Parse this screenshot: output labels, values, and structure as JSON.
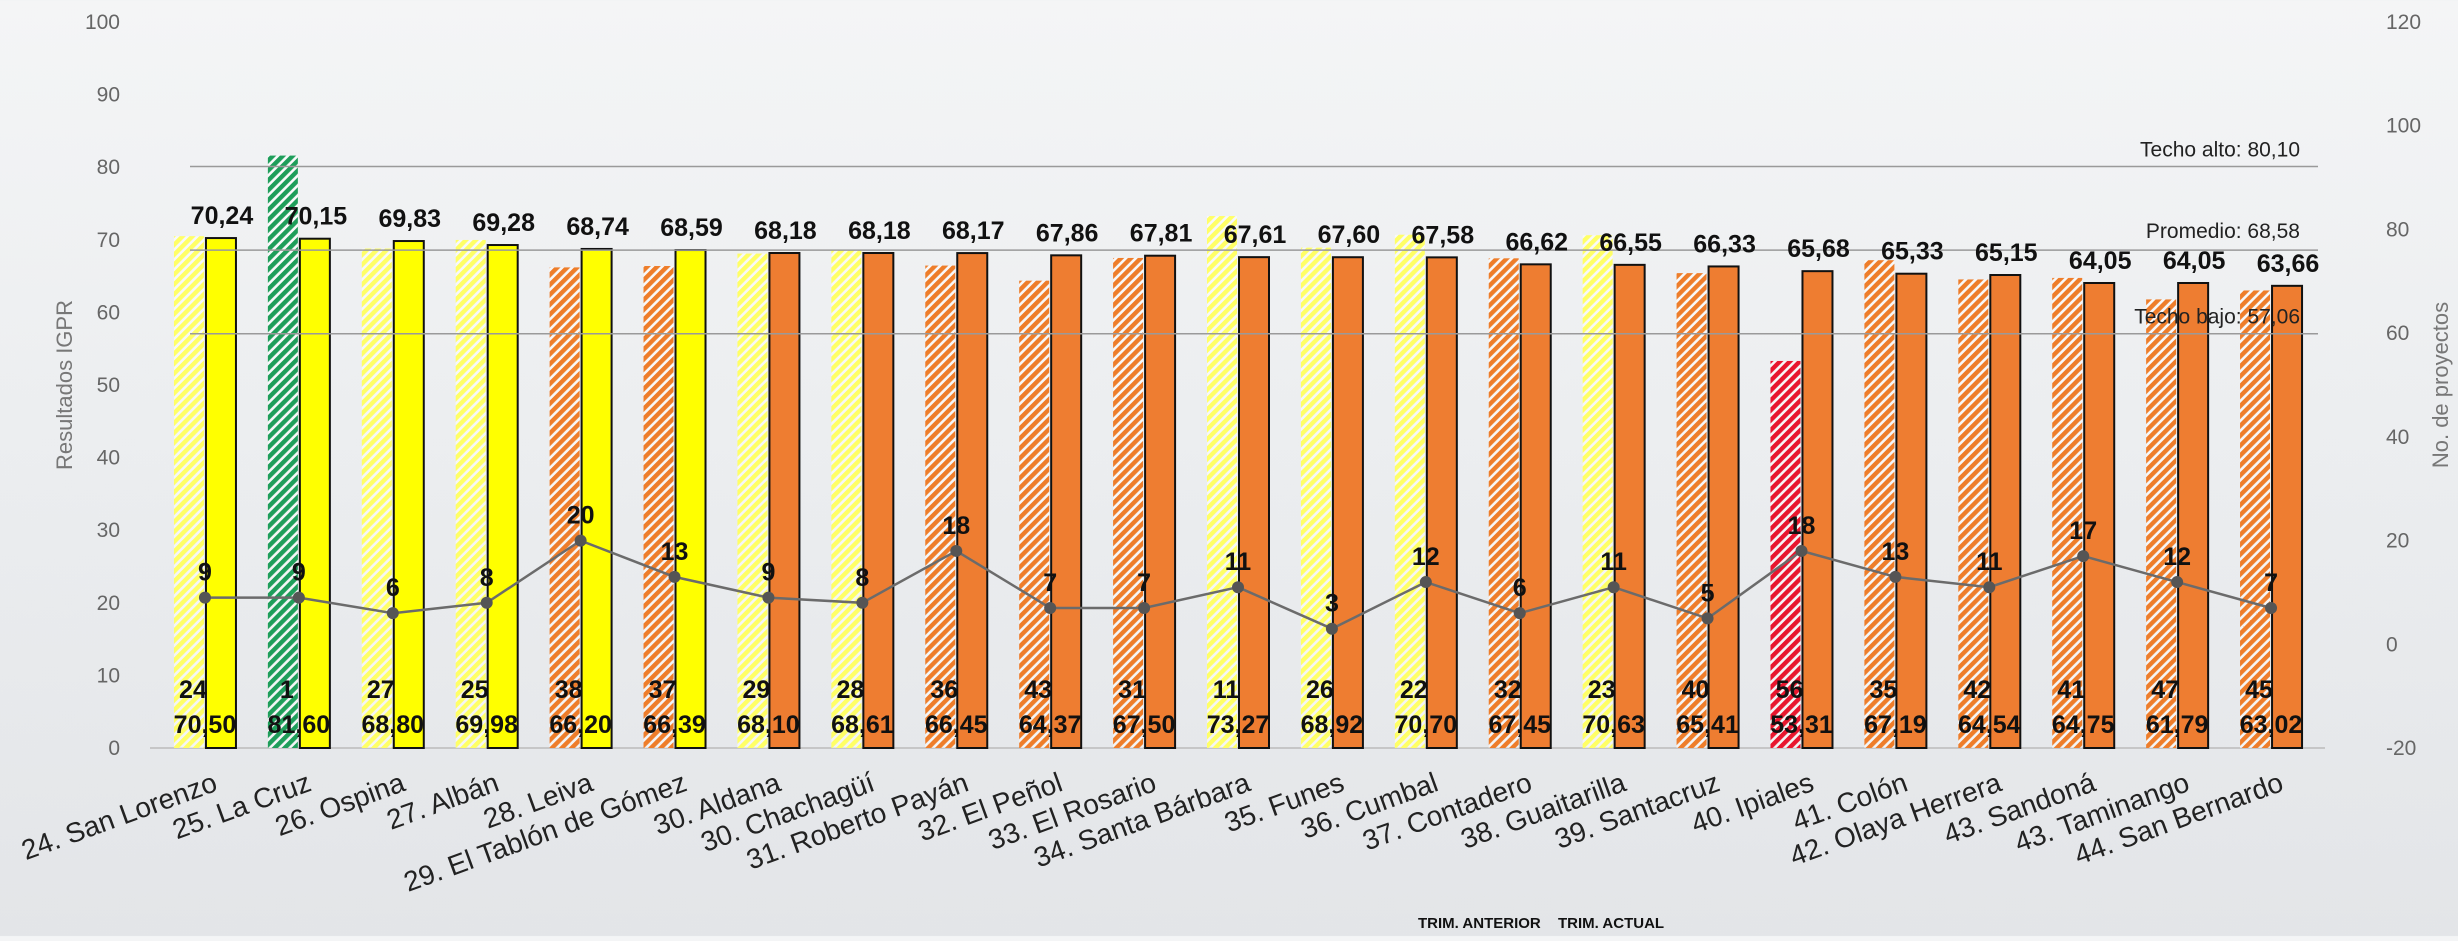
{
  "chart_data": {
    "type": "bar",
    "categories": [
      "24. San Lorenzo",
      "25. La Cruz",
      "26. Ospina",
      "27. Albán",
      "28. Leiva",
      "29. El Tablón de Gómez",
      "30. Aldana",
      "30. Chachagüí",
      "31. Roberto Payán",
      "32. El Peñol",
      "33. El Rosario",
      "34. Santa Bárbara",
      "35. Funes",
      "36. Cumbal",
      "37. Contadero",
      "38. Guaitarilla",
      "39. Santacruz",
      "40. Ipiales",
      "41. Colón",
      "42. Olaya Herrera",
      "43. Sandoná",
      "43. Taminango",
      "44. San Bernardo"
    ],
    "series": [
      {
        "name": "TRIM. ANTERIOR",
        "values": [
          70.5,
          81.6,
          68.8,
          69.98,
          66.2,
          66.39,
          68.1,
          68.61,
          66.45,
          64.37,
          67.5,
          73.27,
          68.92,
          70.7,
          67.45,
          70.63,
          65.41,
          53.31,
          67.19,
          64.54,
          64.75,
          61.79,
          63.02
        ],
        "value_labels": [
          "70,50",
          "81,60",
          "68,80",
          "69,98",
          "66,20",
          "66,39",
          "68,10",
          "68,61",
          "66,45",
          "64,37",
          "67,50",
          "73,27",
          "68,92",
          "70,70",
          "67,45",
          "70,63",
          "65,41",
          "53,31",
          "67,19",
          "64,54",
          "64,75",
          "61,79",
          "63,02"
        ],
        "rank_labels": [
          "24",
          "1",
          "27",
          "25",
          "38",
          "37",
          "29",
          "28",
          "36",
          "43",
          "31",
          "11",
          "26",
          "22",
          "32",
          "23",
          "40",
          "56",
          "35",
          "42",
          "41",
          "47",
          "45"
        ],
        "colors": [
          "#ffff66",
          "#1e9e5a",
          "#ffff66",
          "#ffff66",
          "#ee7d2a",
          "#ee7d2a",
          "#ffff66",
          "#ffff66",
          "#ee7d2a",
          "#ee7d2a",
          "#ee7d2a",
          "#ffff66",
          "#ffff66",
          "#ffff66",
          "#ee7d2a",
          "#ffff66",
          "#ee7d2a",
          "#e8162e",
          "#ee7d2a",
          "#ee7d2a",
          "#ee7d2a",
          "#ee7d2a",
          "#ee7d2a"
        ]
      },
      {
        "name": "TRIM. ACTUAL",
        "values": [
          70.24,
          70.15,
          69.83,
          69.28,
          68.74,
          68.59,
          68.18,
          68.18,
          68.17,
          67.86,
          67.81,
          67.61,
          67.6,
          67.58,
          66.62,
          66.55,
          66.33,
          65.68,
          65.33,
          65.15,
          64.05,
          64.05,
          63.66
        ],
        "value_labels": [
          "70,24",
          "70,15",
          "69,83",
          "69,28",
          "68,74",
          "68,59",
          "68,18",
          "68,18",
          "68,17",
          "67,86",
          "67,81",
          "67,61",
          "67,60",
          "67,58",
          "66,62",
          "66,55",
          "66,33",
          "65,68",
          "65,33",
          "65,15",
          "64,05",
          "64,05",
          "63,66"
        ],
        "colors": [
          "#ffff00",
          "#ffff00",
          "#ffff00",
          "#ffff00",
          "#ffff00",
          "#ffff00",
          "#ee7d31",
          "#ee7d31",
          "#ee7d31",
          "#ee7d31",
          "#ee7d31",
          "#ee7d31",
          "#ee7d31",
          "#ee7d31",
          "#ee7d31",
          "#ee7d31",
          "#ee7d31",
          "#ee7d31",
          "#ee7d31",
          "#ee7d31",
          "#ee7d31",
          "#ee7d31",
          "#ee7d31"
        ]
      },
      {
        "name": "No. de proyectos",
        "axis": "right",
        "type": "line",
        "values": [
          9,
          9,
          6,
          8,
          20,
          13,
          9,
          8,
          18,
          7,
          7,
          11,
          3,
          12,
          6,
          11,
          5,
          18,
          13,
          11,
          17,
          12,
          7
        ]
      }
    ],
    "reference_lines": [
      {
        "label": "Techo alto: 80,10",
        "value": 80.1
      },
      {
        "label": "Promedio: 68,58",
        "value": 68.58
      },
      {
        "label": "Techo bajo: 57,06",
        "value": 57.06
      }
    ],
    "ylabel": "Resultados IGPR",
    "y2label": "No. de proyectos",
    "ylim": [
      0,
      100
    ],
    "y2lim": [
      -20,
      120
    ],
    "yticks": [
      "0",
      "10",
      "20",
      "30",
      "40",
      "50",
      "60",
      "70",
      "80",
      "90",
      "100"
    ],
    "y2ticks": [
      "-20",
      "0",
      "20",
      "40",
      "60",
      "80",
      "100",
      "120"
    ],
    "legend": {
      "position": "bottom",
      "items": [
        "TRIM. ANTERIOR",
        "TRIM. ACTUAL"
      ]
    },
    "grid": false
  }
}
